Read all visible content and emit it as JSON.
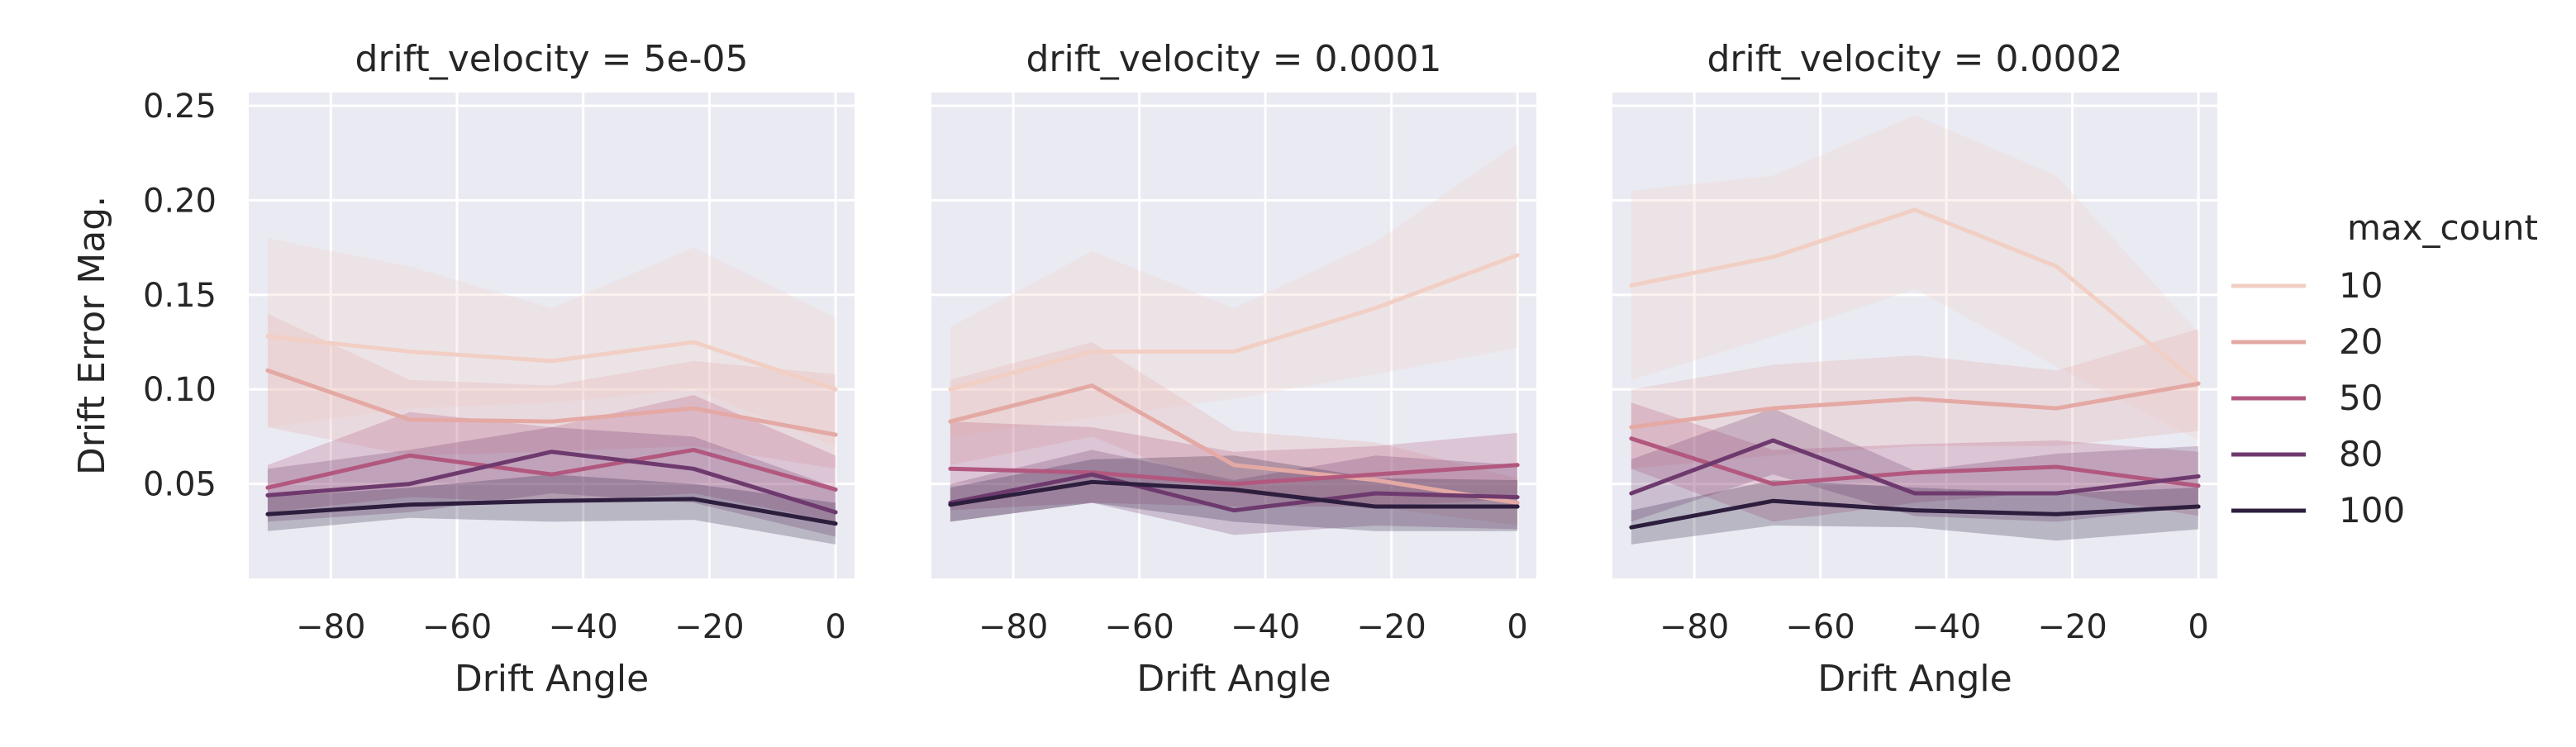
{
  "chart_data": {
    "type": "line",
    "ylabel": "Drift Error Mag.",
    "xlabel": "Drift Angle",
    "xlim": [
      -93,
      3
    ],
    "ylim": [
      0.0,
      0.257
    ],
    "xticks": [
      -80,
      -60,
      -40,
      -20,
      0
    ],
    "xtick_labels": [
      "−80",
      "−60",
      "−40",
      "−20",
      "0"
    ],
    "yticks": [
      0.05,
      0.1,
      0.15,
      0.2,
      0.25
    ],
    "ytick_labels": [
      "0.05",
      "0.10",
      "0.15",
      "0.20",
      "0.25"
    ],
    "grid": true,
    "legend": {
      "title": "max_count",
      "placement": "right",
      "entries": [
        "10",
        "20",
        "50",
        "80",
        "100"
      ]
    },
    "series_colors": [
      "#f2cfc4",
      "#e4a9a4",
      "#b2587f",
      "#6e3a6e",
      "#2d1e3e"
    ],
    "x": [
      -90,
      -67.5,
      -45,
      -22.5,
      0
    ],
    "panels": [
      {
        "title": "drift_velocity = 5e-05",
        "series": [
          {
            "name": "10",
            "values": [
              0.128,
              0.12,
              0.115,
              0.125,
              0.1
            ],
            "lower": [
              0.08,
              0.09,
              0.093,
              0.1,
              0.07
            ],
            "upper": [
              0.18,
              0.165,
              0.143,
              0.175,
              0.138
            ]
          },
          {
            "name": "20",
            "values": [
              0.11,
              0.084,
              0.083,
              0.09,
              0.076
            ],
            "lower": [
              0.08,
              0.065,
              0.067,
              0.07,
              0.058
            ],
            "upper": [
              0.14,
              0.105,
              0.102,
              0.115,
              0.108
            ]
          },
          {
            "name": "50",
            "values": [
              0.048,
              0.065,
              0.055,
              0.068,
              0.047
            ],
            "lower": [
              0.035,
              0.043,
              0.04,
              0.045,
              0.03
            ],
            "upper": [
              0.06,
              0.088,
              0.08,
              0.097,
              0.065
            ]
          },
          {
            "name": "80",
            "values": [
              0.044,
              0.05,
              0.067,
              0.058,
              0.035
            ],
            "lower": [
              0.03,
              0.035,
              0.045,
              0.04,
              0.022
            ],
            "upper": [
              0.058,
              0.068,
              0.08,
              0.075,
              0.048
            ]
          },
          {
            "name": "100",
            "values": [
              0.034,
              0.039,
              0.041,
              0.042,
              0.029
            ],
            "lower": [
              0.025,
              0.032,
              0.03,
              0.031,
              0.018
            ],
            "upper": [
              0.043,
              0.048,
              0.055,
              0.05,
              0.04
            ]
          }
        ]
      },
      {
        "title": "drift_velocity = 0.0001",
        "series": [
          {
            "name": "10",
            "values": [
              0.1,
              0.12,
              0.12,
              0.143,
              0.171
            ],
            "lower": [
              0.075,
              0.085,
              0.095,
              0.108,
              0.122
            ],
            "upper": [
              0.133,
              0.173,
              0.143,
              0.178,
              0.23
            ]
          },
          {
            "name": "20",
            "values": [
              0.083,
              0.102,
              0.06,
              0.052,
              0.04
            ],
            "lower": [
              0.06,
              0.075,
              0.045,
              0.038,
              0.028
            ],
            "upper": [
              0.105,
              0.125,
              0.078,
              0.072,
              0.053
            ]
          },
          {
            "name": "50",
            "values": [
              0.058,
              0.056,
              0.05,
              0.055,
              0.06
            ],
            "lower": [
              0.036,
              0.04,
              0.038,
              0.038,
              0.042
            ],
            "upper": [
              0.083,
              0.08,
              0.067,
              0.07,
              0.077
            ]
          },
          {
            "name": "80",
            "values": [
              0.04,
              0.055,
              0.036,
              0.045,
              0.043
            ],
            "lower": [
              0.03,
              0.04,
              0.023,
              0.028,
              0.026
            ],
            "upper": [
              0.05,
              0.068,
              0.052,
              0.065,
              0.06
            ]
          },
          {
            "name": "100",
            "values": [
              0.039,
              0.051,
              0.047,
              0.038,
              0.038
            ],
            "lower": [
              0.03,
              0.04,
              0.03,
              0.025,
              0.025
            ],
            "upper": [
              0.048,
              0.063,
              0.065,
              0.053,
              0.052
            ]
          }
        ]
      },
      {
        "title": "drift_velocity = 0.0002",
        "series": [
          {
            "name": "10",
            "values": [
              0.155,
              0.17,
              0.195,
              0.165,
              0.103
            ],
            "lower": [
              0.105,
              0.128,
              0.153,
              0.112,
              0.073
            ],
            "upper": [
              0.205,
              0.213,
              0.245,
              0.213,
              0.13
            ]
          },
          {
            "name": "20",
            "values": [
              0.08,
              0.09,
              0.095,
              0.09,
              0.103
            ],
            "lower": [
              0.058,
              0.065,
              0.07,
              0.07,
              0.078
            ],
            "upper": [
              0.1,
              0.113,
              0.118,
              0.11,
              0.132
            ]
          },
          {
            "name": "50",
            "values": [
              0.074,
              0.05,
              0.056,
              0.059,
              0.049
            ],
            "lower": [
              0.058,
              0.03,
              0.04,
              0.046,
              0.033
            ],
            "upper": [
              0.093,
              0.068,
              0.071,
              0.073,
              0.067
            ]
          },
          {
            "name": "80",
            "values": [
              0.045,
              0.073,
              0.045,
              0.045,
              0.054
            ],
            "lower": [
              0.03,
              0.055,
              0.033,
              0.03,
              0.038
            ],
            "upper": [
              0.063,
              0.09,
              0.057,
              0.066,
              0.07
            ]
          },
          {
            "name": "100",
            "values": [
              0.027,
              0.041,
              0.036,
              0.034,
              0.038
            ],
            "lower": [
              0.018,
              0.028,
              0.027,
              0.02,
              0.026
            ],
            "upper": [
              0.036,
              0.052,
              0.048,
              0.045,
              0.048
            ]
          }
        ]
      }
    ]
  }
}
